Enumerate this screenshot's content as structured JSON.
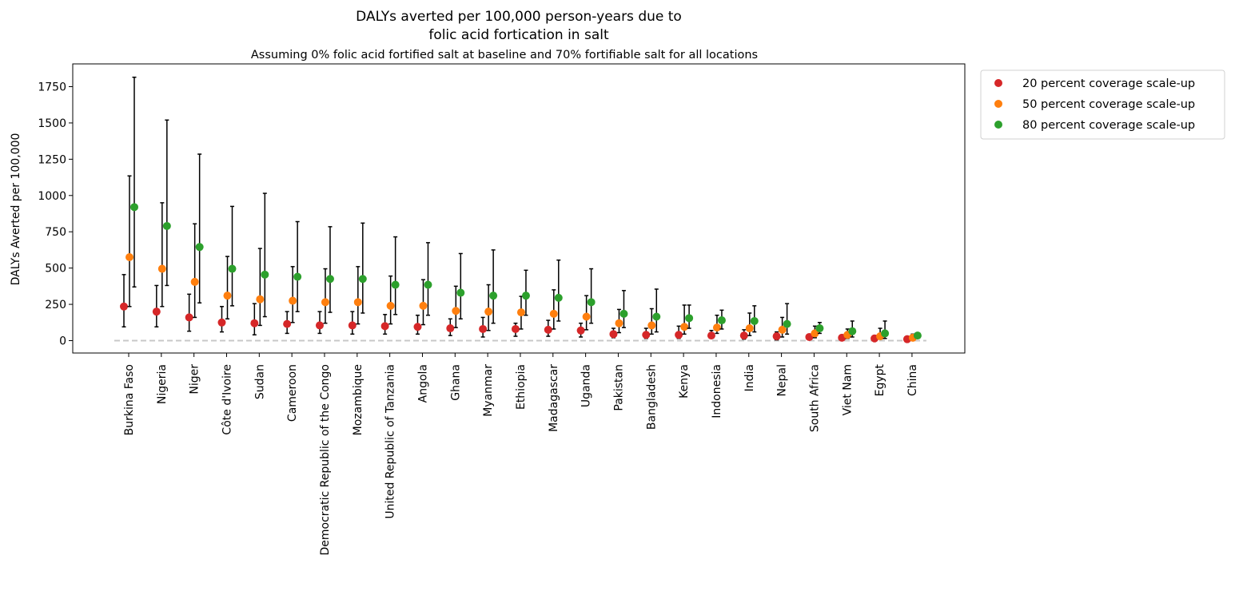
{
  "chart_data": {
    "type": "scatter",
    "title_lines": [
      "DALYs averted per 100,000 person-years due to",
      "folic acid fortication in salt"
    ],
    "subtitle": "Assuming 0% folic acid fortified salt at baseline and 70% fortifiable salt for all locations",
    "xlabel": "",
    "ylabel": "DALYs Averted per 100,000",
    "ylim": [
      -90,
      1910
    ],
    "yticks": [
      0,
      250,
      500,
      750,
      1000,
      1250,
      1500,
      1750
    ],
    "grid": false,
    "legend_position": "outside-top-right",
    "baseline": 0,
    "baseline_color": "#c8c8c8",
    "errorbar_color": "#000000",
    "categories": [
      "Burkina Faso",
      "Nigeria",
      "Niger",
      "Côte d'Ivoire",
      "Sudan",
      "Cameroon",
      "Democratic Republic of the Congo",
      "Mozambique",
      "United Republic of Tanzania",
      "Angola",
      "Ghana",
      "Myanmar",
      "Ethiopia",
      "Madagascar",
      "Uganda",
      "Pakistan",
      "Bangladesh",
      "Kenya",
      "Indonesia",
      "India",
      "Nepal",
      "South Africa",
      "Viet Nam",
      "Egypt",
      "China"
    ],
    "series": [
      {
        "name": "20 percent coverage scale-up",
        "color": "#d62728",
        "values": [
          235,
          200,
          160,
          125,
          120,
          115,
          105,
          105,
          100,
          95,
          85,
          80,
          80,
          75,
          70,
          45,
          40,
          40,
          35,
          35,
          30,
          25,
          20,
          15,
          10
        ],
        "lower": [
          95,
          95,
          65,
          60,
          40,
          50,
          50,
          45,
          45,
          45,
          35,
          25,
          30,
          30,
          25,
          20,
          15,
          15,
          15,
          10,
          5,
          10,
          5,
          5,
          5
        ],
        "upper": [
          455,
          380,
          320,
          235,
          255,
          200,
          200,
          200,
          180,
          175,
          150,
          160,
          120,
          140,
          120,
          85,
          85,
          100,
          70,
          75,
          60,
          40,
          40,
          35,
          20
        ]
      },
      {
        "name": "50 percent coverage scale-up",
        "color": "#ff7f0e",
        "values": [
          575,
          495,
          405,
          310,
          285,
          275,
          265,
          265,
          240,
          240,
          205,
          200,
          195,
          185,
          165,
          120,
          105,
          95,
          90,
          85,
          75,
          50,
          40,
          30,
          20
        ],
        "lower": [
          235,
          235,
          160,
          150,
          105,
          125,
          120,
          115,
          115,
          110,
          90,
          70,
          80,
          80,
          75,
          55,
          45,
          45,
          50,
          35,
          25,
          20,
          15,
          10,
          10
        ],
        "upper": [
          1135,
          950,
          805,
          580,
          635,
          510,
          495,
          510,
          445,
          420,
          375,
          385,
          305,
          350,
          310,
          215,
          220,
          245,
          175,
          190,
          160,
          100,
          80,
          85,
          45
        ]
      },
      {
        "name": "80 percent coverage scale-up",
        "color": "#2ca02c",
        "values": [
          920,
          790,
          645,
          495,
          455,
          440,
          425,
          425,
          385,
          385,
          330,
          310,
          310,
          295,
          265,
          185,
          165,
          155,
          140,
          135,
          115,
          85,
          65,
          50,
          35
        ],
        "lower": [
          370,
          380,
          260,
          240,
          165,
          200,
          195,
          190,
          180,
          175,
          150,
          120,
          175,
          135,
          120,
          90,
          60,
          85,
          80,
          60,
          45,
          50,
          25,
          15,
          15
        ],
        "upper": [
          1815,
          1520,
          1285,
          925,
          1015,
          820,
          785,
          810,
          715,
          675,
          600,
          625,
          485,
          555,
          495,
          345,
          355,
          245,
          210,
          240,
          255,
          125,
          135,
          135,
          40
        ]
      }
    ]
  }
}
